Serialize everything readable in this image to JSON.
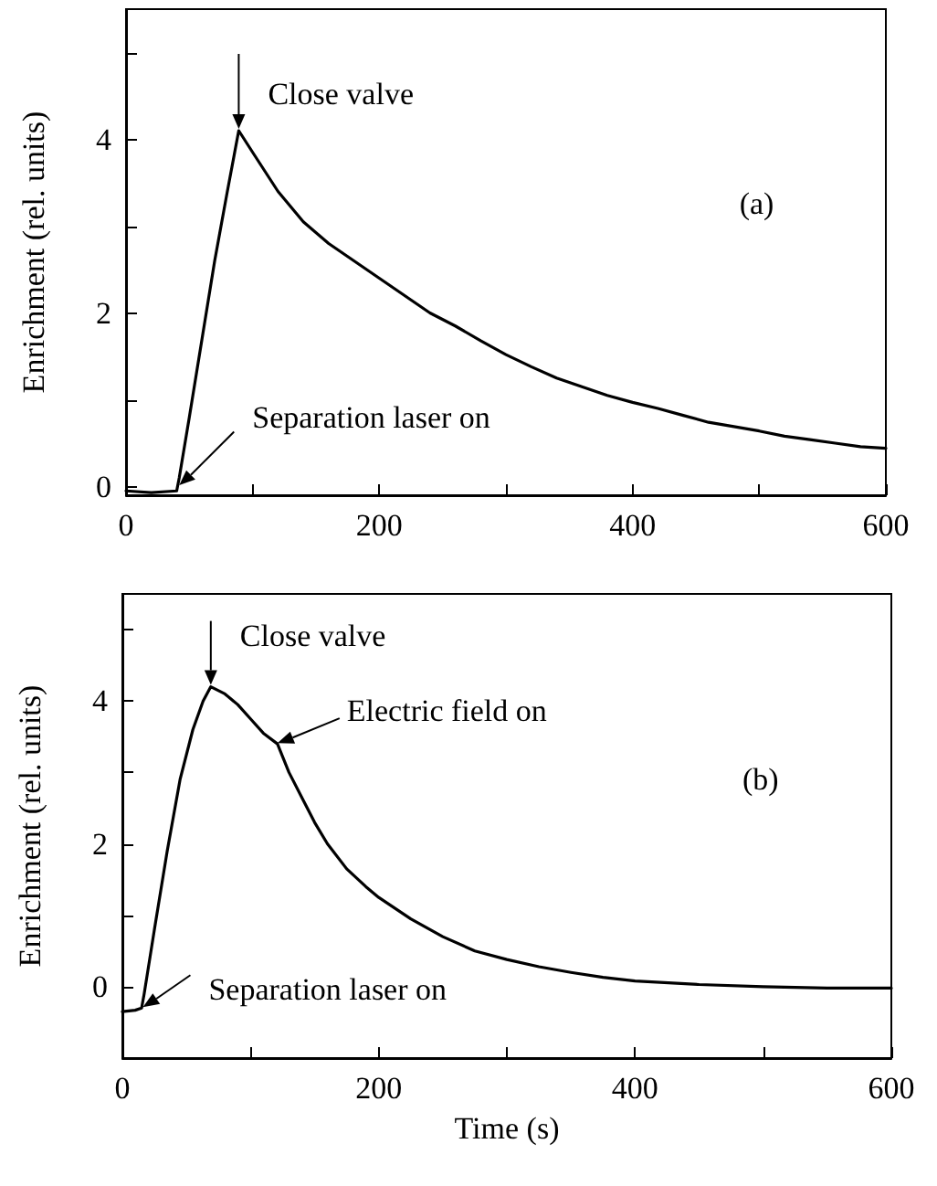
{
  "chart_data": [
    {
      "type": "line",
      "ylabel": "Enrichment (rel. units)",
      "annotations": [
        {
          "text": "Close valve",
          "x": 89,
          "y": 4.1
        },
        {
          "text": "Separation laser on",
          "x": 42,
          "y": 0
        },
        "(a)"
      ],
      "series": [
        {
          "color": "#000000",
          "x": [
            0,
            20,
            40,
            42,
            50,
            60,
            70,
            80,
            89,
            100,
            120,
            140,
            160,
            180,
            200,
            220,
            240,
            260,
            280,
            300,
            320,
            340,
            360,
            380,
            400,
            420,
            440,
            460,
            480,
            500,
            520,
            540,
            560,
            580,
            600
          ],
          "values": [
            -0.05,
            -0.07,
            -0.05,
            0.1,
            0.8,
            1.7,
            2.6,
            3.4,
            4.1,
            3.85,
            3.4,
            3.05,
            2.8,
            2.6,
            2.4,
            2.2,
            2.0,
            1.85,
            1.68,
            1.52,
            1.38,
            1.25,
            1.15,
            1.05,
            0.97,
            0.9,
            0.82,
            0.74,
            0.69,
            0.64,
            0.58,
            0.54,
            0.5,
            0.46,
            0.44
          ]
        }
      ],
      "xlim": [
        0,
        600
      ],
      "xticks": [
        0,
        {
          "value": 100,
          "label": null
        },
        200,
        {
          "value": 300,
          "label": null
        },
        400,
        {
          "value": 500,
          "label": null
        },
        600
      ],
      "ylim": [
        -0.1,
        5.5
      ],
      "yticks": [
        0,
        {
          "value": 1,
          "label": null
        },
        2,
        {
          "value": 3,
          "label": null
        },
        4,
        {
          "value": 5,
          "label": null
        }
      ],
      "grid": false,
      "marker": "none",
      "line_style": "solid"
    },
    {
      "type": "line",
      "xlabel": "Time (s)",
      "ylabel": "Enrichment (rel. units)",
      "annotations": [
        {
          "text": "Close valve",
          "x": 69,
          "y": 4.2
        },
        {
          "text": "Electric field on",
          "x": 121,
          "y": 3.4
        },
        {
          "text": "Separation laser on",
          "x": 16,
          "y": -0.3
        },
        "(b)"
      ],
      "series": [
        {
          "color": "#000000",
          "x": [
            0,
            10,
            15,
            17,
            25,
            35,
            45,
            55,
            63,
            69,
            80,
            90,
            100,
            110,
            121,
            130,
            140,
            150,
            160,
            175,
            190,
            200,
            225,
            250,
            275,
            300,
            325,
            350,
            375,
            400,
            450,
            500,
            550,
            600
          ],
          "values": [
            -0.35,
            -0.33,
            -0.3,
            -0.1,
            0.8,
            1.9,
            2.9,
            3.6,
            4.0,
            4.2,
            4.1,
            3.95,
            3.75,
            3.55,
            3.4,
            3.0,
            2.65,
            2.3,
            2.0,
            1.65,
            1.4,
            1.25,
            0.95,
            0.7,
            0.5,
            0.38,
            0.28,
            0.2,
            0.13,
            0.08,
            0.03,
            0.0,
            -0.02,
            -0.02
          ]
        }
      ],
      "xlim": [
        0,
        600
      ],
      "xticks": [
        0,
        {
          "value": 100,
          "label": null
        },
        200,
        {
          "value": 300,
          "label": null
        },
        400,
        {
          "value": 500,
          "label": null
        },
        600
      ],
      "ylim": [
        -1,
        5.5
      ],
      "yticks": [
        0,
        {
          "value": 1,
          "label": null
        },
        2,
        {
          "value": 3,
          "label": null
        },
        4,
        {
          "value": 5,
          "label": null
        }
      ],
      "grid": false,
      "marker": "none",
      "line_style": "solid"
    }
  ]
}
